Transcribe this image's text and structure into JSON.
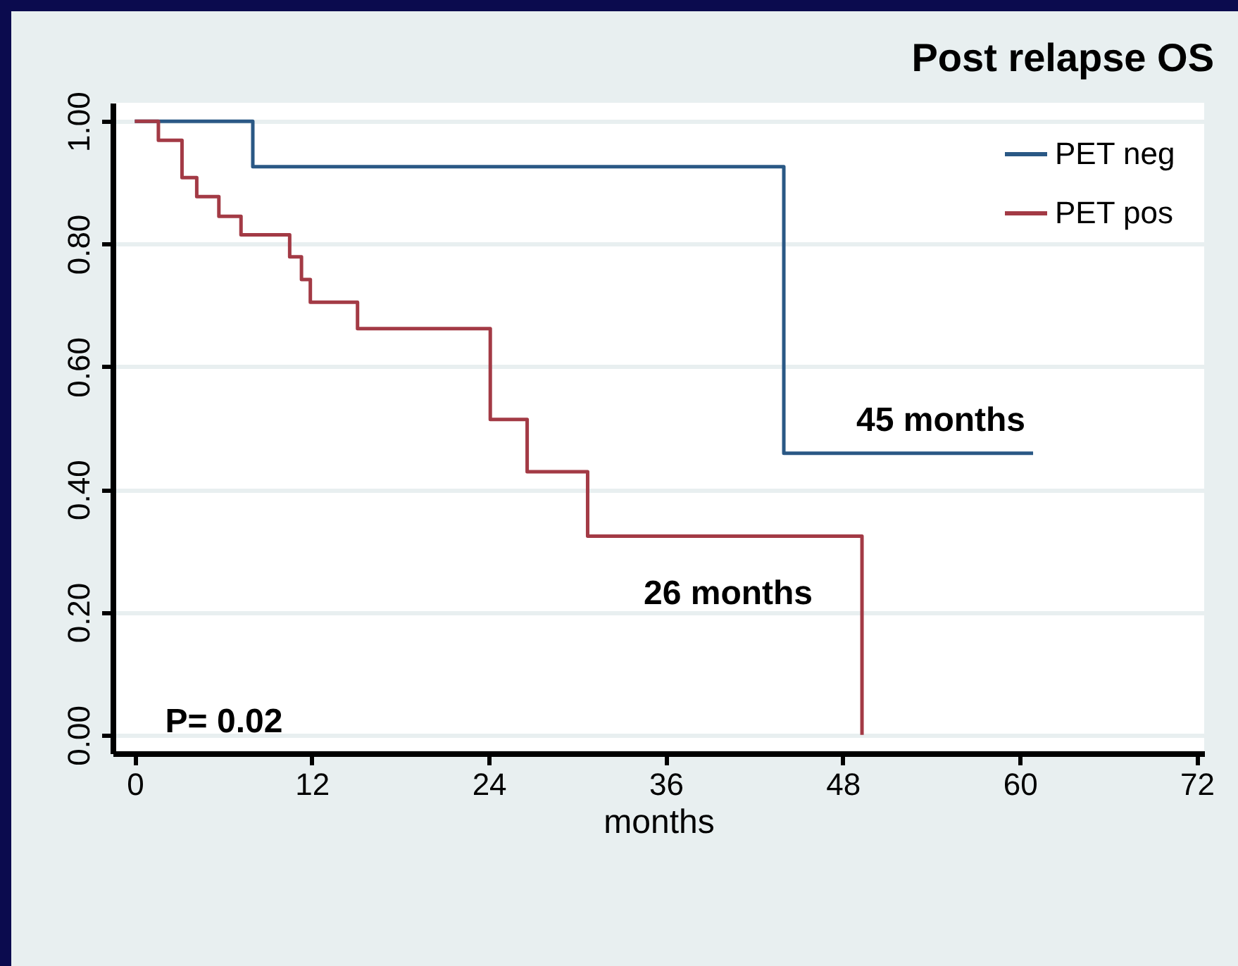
{
  "chart_data": {
    "type": "step",
    "title": "Post relapse OS",
    "xlabel": "months",
    "series": [
      {
        "name": "PET neg",
        "color": "#2a5885",
        "x": [
          0,
          8.0,
          44.0,
          60.9
        ],
        "values": [
          1.0,
          0.926,
          0.459,
          0.459
        ]
      },
      {
        "name": "PET pos",
        "color": "#a33a45",
        "x": [
          0,
          1.6,
          3.2,
          4.2,
          5.7,
          7.2,
          10.5,
          11.3,
          11.9,
          15.1,
          24.1,
          26.6,
          30.7,
          49.3
        ],
        "values": [
          1.0,
          0.969,
          0.908,
          0.877,
          0.845,
          0.815,
          0.779,
          0.742,
          0.705,
          0.662,
          0.514,
          0.429,
          0.324,
          0
        ]
      }
    ],
    "xlim": [
      -1.5,
      72.5
    ],
    "xticks": [
      0,
      12,
      24,
      36,
      48,
      60,
      72
    ],
    "ylim": [
      -0.03,
      1.03
    ],
    "yticks": [
      {
        "value": 0,
        "label": "0.00"
      },
      {
        "value": 0.2,
        "label": "0.20"
      },
      {
        "value": 0.4,
        "label": "0.40"
      },
      {
        "value": 0.6,
        "label": "0.60"
      },
      {
        "value": 0.8,
        "label": "0.80"
      },
      {
        "value": 1,
        "label": "1.00"
      }
    ],
    "grid": "y",
    "legend": "top right",
    "annotations": [
      "45 months",
      "26 months",
      "P= 0.02"
    ]
  }
}
